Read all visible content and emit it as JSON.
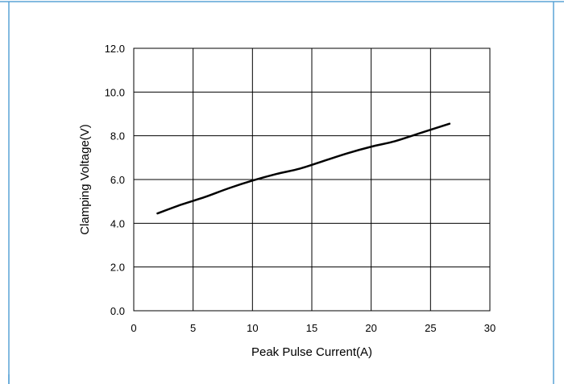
{
  "chart_data": {
    "type": "line",
    "title": "",
    "xlabel": "Peak Pulse Current(A)",
    "ylabel": "Clamping Voltage(V)",
    "xlim": [
      0,
      30
    ],
    "ylim": [
      0,
      12
    ],
    "x_ticks": [
      "0",
      "5",
      "10",
      "15",
      "20",
      "25",
      "30"
    ],
    "y_ticks": [
      "0.0",
      "2.0",
      "4.0",
      "6.0",
      "8.0",
      "10.0",
      "12.0"
    ],
    "grid": true,
    "series": [
      {
        "x": [
          2,
          4,
          6,
          8,
          10,
          12,
          14,
          16,
          18,
          20,
          22,
          24,
          26.6
        ],
        "y": [
          4.45,
          4.85,
          5.2,
          5.6,
          5.95,
          6.25,
          6.5,
          6.85,
          7.2,
          7.5,
          7.75,
          8.1,
          8.55
        ]
      }
    ],
    "colors": {
      "line": "#000000",
      "grid": "#000000",
      "frame_border": "#5aa3d6"
    }
  }
}
